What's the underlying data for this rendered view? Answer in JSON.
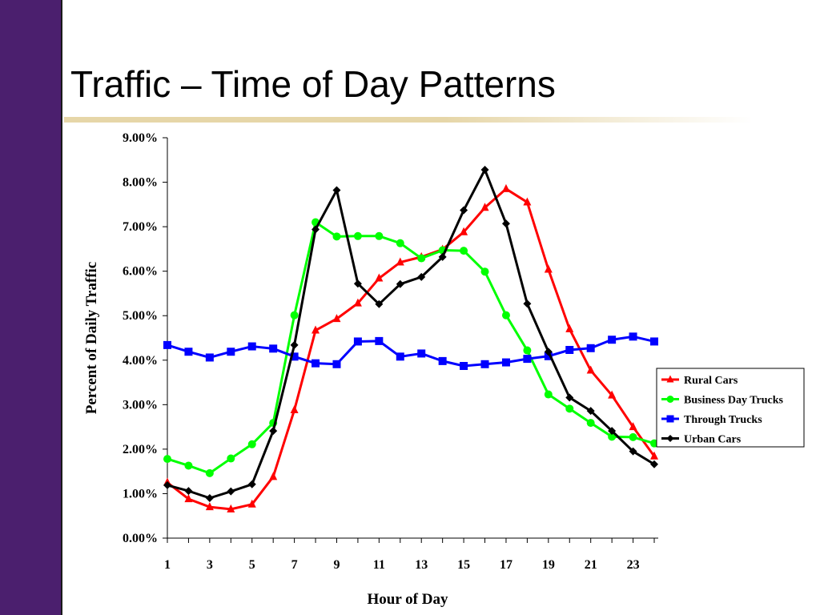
{
  "slide": {
    "title": "Traffic – Time of Day Patterns",
    "accent_bar_color": "#4b1f6e",
    "rule_color": "#e6d6a8"
  },
  "chart_data": {
    "type": "line",
    "xlabel": "Hour of Day",
    "ylabel": "Percent of Daily Traffic",
    "x": [
      1,
      2,
      3,
      4,
      5,
      6,
      7,
      8,
      9,
      10,
      11,
      12,
      13,
      14,
      15,
      16,
      17,
      18,
      19,
      20,
      21,
      22,
      23,
      24
    ],
    "x_tick_labels": [
      "1",
      "3",
      "5",
      "7",
      "9",
      "11",
      "13",
      "15",
      "17",
      "19",
      "21",
      "23"
    ],
    "x_tick_values": [
      1,
      3,
      5,
      7,
      9,
      11,
      13,
      15,
      17,
      19,
      21,
      23
    ],
    "xlim": [
      1,
      24
    ],
    "ylim": [
      0,
      9
    ],
    "y_ticks": [
      0,
      1,
      2,
      3,
      4,
      5,
      6,
      7,
      8,
      9
    ],
    "y_tick_labels": [
      "0.00%",
      "1.00%",
      "2.00%",
      "3.00%",
      "4.00%",
      "5.00%",
      "6.00%",
      "7.00%",
      "8.00%",
      "9.00%"
    ],
    "y_unit": "percent",
    "grid": false,
    "legend_position": "right",
    "series": [
      {
        "name": "Rural Cars",
        "color": "#ff0000",
        "marker": "triangle",
        "values": [
          1.25,
          0.88,
          0.7,
          0.65,
          0.76,
          1.38,
          2.88,
          4.67,
          4.93,
          5.28,
          5.84,
          6.2,
          6.32,
          6.49,
          6.88,
          7.43,
          7.85,
          7.55,
          6.04,
          4.7,
          3.77,
          3.21,
          2.5,
          1.84
        ]
      },
      {
        "name": "Business Day Trucks",
        "color": "#00ff00",
        "marker": "circle",
        "values": [
          1.78,
          1.63,
          1.46,
          1.79,
          2.11,
          2.59,
          5.01,
          7.1,
          6.78,
          6.79,
          6.79,
          6.63,
          6.29,
          6.47,
          6.46,
          5.99,
          5.01,
          4.22,
          3.23,
          2.91,
          2.59,
          2.28,
          2.27,
          2.13
        ]
      },
      {
        "name": "Through Trucks",
        "color": "#0000ff",
        "marker": "square",
        "values": [
          4.34,
          4.19,
          4.06,
          4.19,
          4.31,
          4.26,
          4.08,
          3.93,
          3.91,
          4.42,
          4.43,
          4.08,
          4.15,
          3.98,
          3.87,
          3.91,
          3.95,
          4.03,
          4.09,
          4.23,
          4.27,
          4.46,
          4.53,
          4.42
        ]
      },
      {
        "name": "Urban Cars",
        "color": "#000000",
        "marker": "diamond",
        "values": [
          1.19,
          1.06,
          0.9,
          1.05,
          1.21,
          2.41,
          4.34,
          6.94,
          7.82,
          5.72,
          5.26,
          5.71,
          5.87,
          6.32,
          7.37,
          8.28,
          7.07,
          5.27,
          4.19,
          3.16,
          2.86,
          2.41,
          1.95,
          1.66
        ]
      }
    ]
  }
}
